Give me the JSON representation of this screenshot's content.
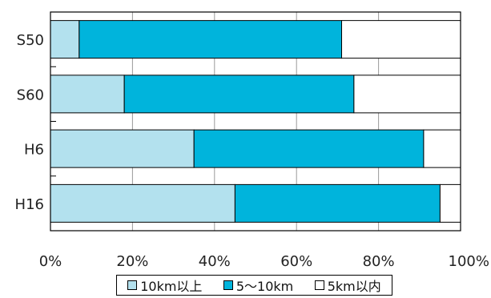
{
  "chart_data": {
    "type": "bar",
    "orientation": "horizontal",
    "stacked": true,
    "categories": [
      "S50",
      "S60",
      "H6",
      "H16"
    ],
    "series": [
      {
        "name": "10km以上",
        "color": "#b3e1ee",
        "values": [
          7,
          18,
          35,
          45
        ]
      },
      {
        "name": "5〜10km",
        "color": "#00b4dc",
        "values": [
          64,
          56,
          56,
          50
        ]
      },
      {
        "name": "5km以内",
        "color": "#ffffff",
        "values": [
          29,
          26,
          9,
          5
        ]
      }
    ],
    "xlim": [
      0,
      100
    ],
    "x_ticks": [
      "0%",
      "20%",
      "40%",
      "60%",
      "80%",
      "100%"
    ],
    "grid": true,
    "legend_position": "bottom"
  }
}
